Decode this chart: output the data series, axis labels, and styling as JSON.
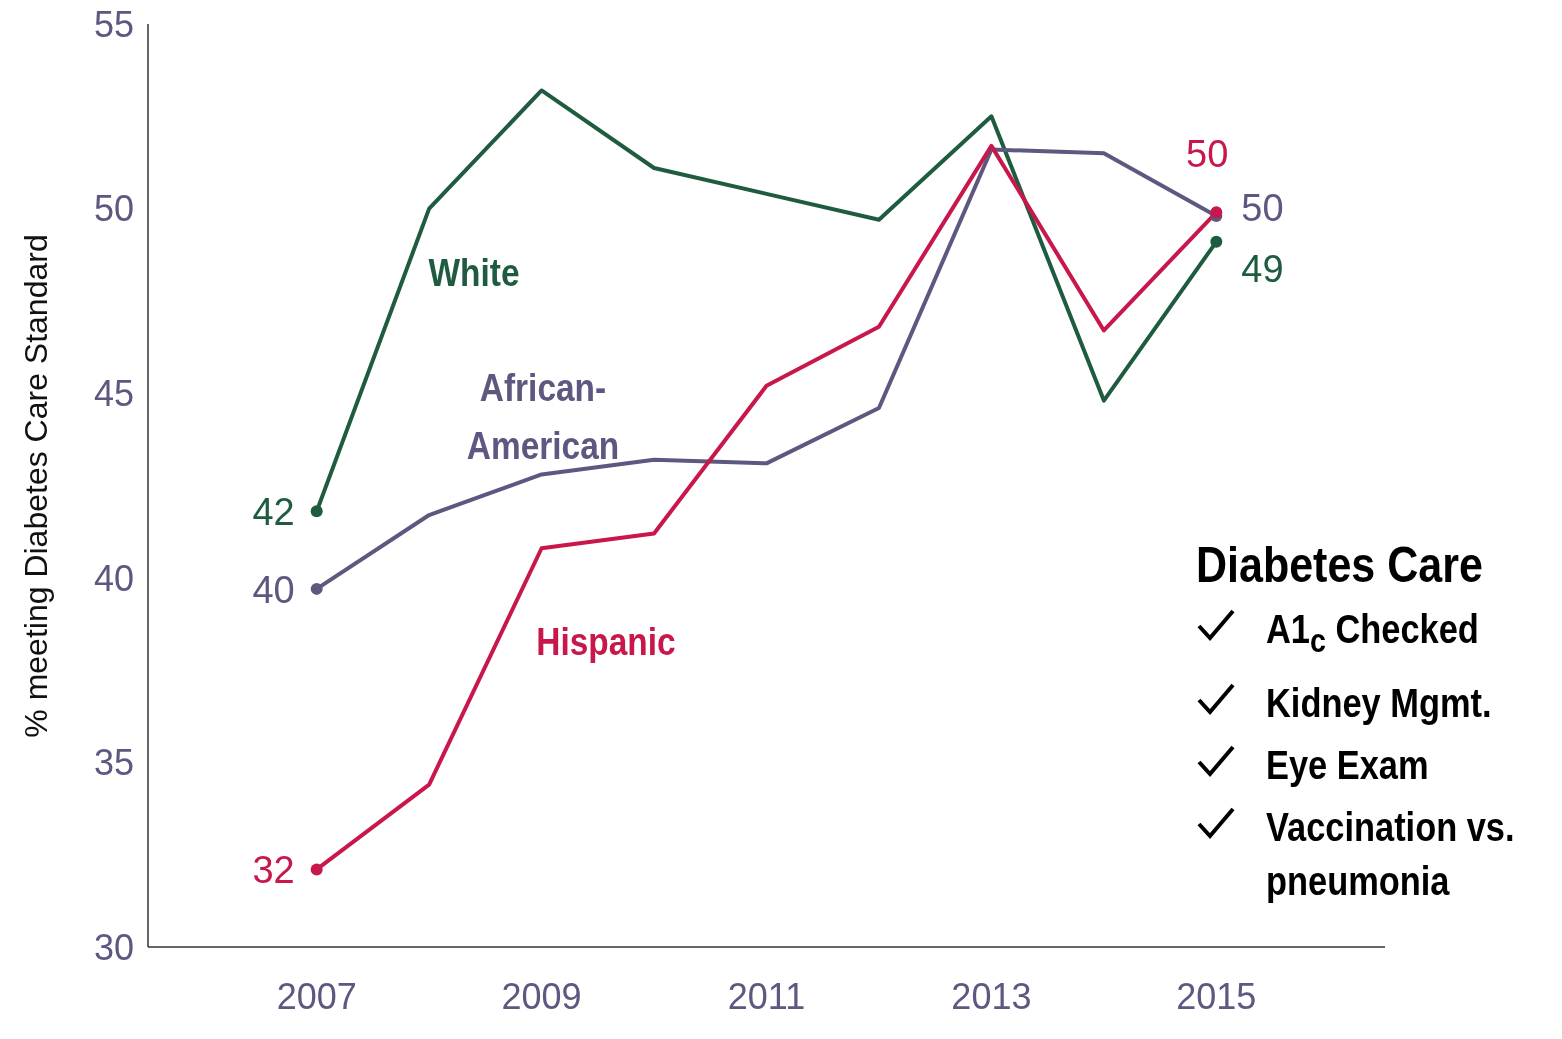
{
  "chart_data": {
    "type": "line",
    "ylabel": "% meeting Diabetes Care Standard",
    "x": [
      2007,
      2008,
      2009,
      2010,
      2011,
      2012,
      2013,
      2014,
      2015
    ],
    "xlim": [
      2005.5,
      2016.5
    ],
    "xticks": [
      2007,
      2009,
      2011,
      2013,
      2015
    ],
    "ylim": [
      30,
      55
    ],
    "yticks": [
      30,
      35,
      40,
      45,
      50,
      55
    ],
    "legend": false,
    "marker": "none",
    "line_style": "solid",
    "series": [
      {
        "name": "White",
        "color": "#1f5c3f",
        "values": [
          41.8,
          50.0,
          53.2,
          51.1,
          50.4,
          49.7,
          52.5,
          44.8,
          49.1
        ],
        "value_labels": [
          "42",
          null,
          null,
          null,
          null,
          null,
          null,
          null,
          "49"
        ]
      },
      {
        "name": "African-American",
        "color": "#5c5880",
        "values": [
          39.7,
          41.7,
          42.8,
          43.2,
          43.1,
          44.6,
          51.6,
          51.5,
          49.8
        ],
        "value_labels": [
          "40",
          null,
          null,
          null,
          null,
          null,
          null,
          null,
          "50"
        ]
      },
      {
        "name": "Hispanic",
        "color": "#c8174a",
        "values": [
          32.1,
          34.4,
          40.8,
          41.2,
          45.2,
          46.8,
          51.7,
          46.7,
          49.9
        ],
        "value_labels": [
          "32",
          null,
          null,
          null,
          null,
          null,
          null,
          null,
          "50"
        ]
      }
    ],
    "annotations": [
      "Diabetes Care",
      "A1$_{c}$ Checked",
      "Kidney Mgmt.",
      "Eye Exam",
      "Vaccination vs. pneumonia"
    ]
  }
}
